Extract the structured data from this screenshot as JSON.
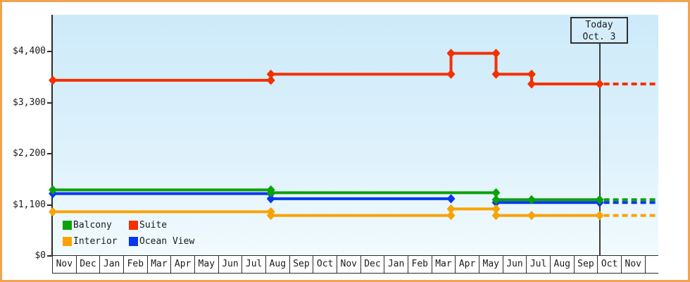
{
  "chart_data": {
    "type": "line",
    "description": "Cruise cabin price history by category over 25 months with forecast after today",
    "y_axis": {
      "tick_labels": [
        "$0",
        "$1,100",
        "$2,200",
        "$3,300",
        "$4,400"
      ],
      "tick_values": [
        0,
        1100,
        2200,
        3300,
        4400
      ],
      "range": [
        0,
        4400
      ],
      "grid": "off"
    },
    "x_axis": {
      "month_labels": [
        "Nov",
        "Dec",
        "Jan",
        "Feb",
        "Mar",
        "Apr",
        "May",
        "Jun",
        "Jul",
        "Aug",
        "Sep",
        "Oct",
        "Nov",
        "Dec",
        "Jan",
        "Feb",
        "Mar",
        "Apr",
        "May",
        "Jun",
        "Jul",
        "Aug",
        "Sep",
        "Oct",
        "Nov"
      ]
    },
    "today": {
      "line1": "Today",
      "line2": "Oct. 3",
      "month_index": 23.07
    },
    "forecast_end_month_index": 25.5,
    "axis_color": "#2b2b2b",
    "series": [
      {
        "name": "Ocean View",
        "color": "#0636f0",
        "segments": [
          [
            {
              "m": 0,
              "v": 1340
            },
            {
              "m": 9.2,
              "v": 1340
            },
            {
              "m": 9.2,
              "v": 1230
            },
            {
              "m": 16.8,
              "v": 1230
            }
          ],
          [
            {
              "m": 18.7,
              "v": 1150
            },
            {
              "m": 23.07,
              "v": 1150
            }
          ]
        ],
        "forecast_value": 1150
      },
      {
        "name": "Interior",
        "color": "#f9a303",
        "segments": [
          [
            {
              "m": 0,
              "v": 950
            },
            {
              "m": 9.2,
              "v": 950
            },
            {
              "m": 9.2,
              "v": 870
            },
            {
              "m": 16.8,
              "v": 870
            },
            {
              "m": 16.8,
              "v": 1010
            },
            {
              "m": 18.7,
              "v": 1010
            },
            {
              "m": 18.7,
              "v": 870
            },
            {
              "m": 20.2,
              "v": 870
            },
            {
              "m": 23.07,
              "v": 870
            }
          ]
        ],
        "forecast_value": 870
      },
      {
        "name": "Suite",
        "color": "#f23000",
        "segments": [
          [
            {
              "m": 0,
              "v": 3780
            },
            {
              "m": 9.2,
              "v": 3780
            },
            {
              "m": 9.2,
              "v": 3910
            },
            {
              "m": 16.8,
              "v": 3910
            },
            {
              "m": 16.8,
              "v": 4360
            },
            {
              "m": 18.7,
              "v": 4360
            },
            {
              "m": 18.7,
              "v": 3910
            },
            {
              "m": 20.2,
              "v": 3910
            },
            {
              "m": 20.2,
              "v": 3700
            },
            {
              "m": 23.07,
              "v": 3700
            }
          ]
        ],
        "forecast_value": 3700
      },
      {
        "name": "Balcony",
        "color": "#0ba10b",
        "segments": [
          [
            {
              "m": 0,
              "v": 1420
            },
            {
              "m": 9.2,
              "v": 1420
            },
            {
              "m": 9.2,
              "v": 1360
            },
            {
              "m": 18.7,
              "v": 1360
            },
            {
              "m": 18.7,
              "v": 1210
            },
            {
              "m": 20.2,
              "v": 1210
            },
            {
              "m": 23.07,
              "v": 1210
            }
          ]
        ],
        "forecast_value": 1210
      }
    ],
    "legend_order": [
      "Balcony",
      "Suite",
      "Interior",
      "Ocean View"
    ]
  }
}
